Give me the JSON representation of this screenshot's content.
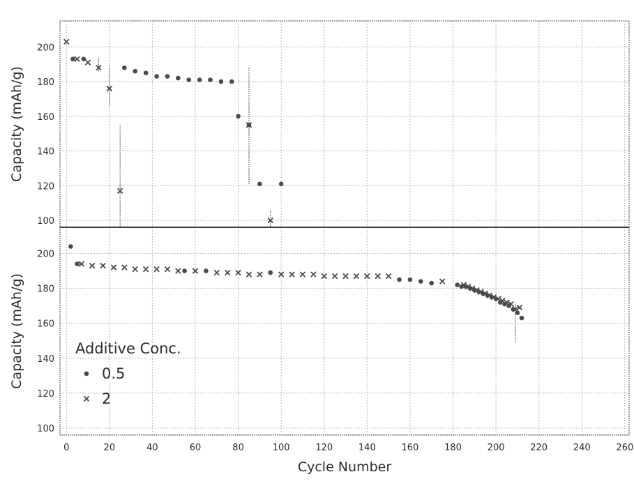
{
  "chart_data": [
    {
      "type": "scatter",
      "panel": "top",
      "ylabel": "Capacity (mAh/g)",
      "xlim": [
        -3,
        262
      ],
      "ylim": [
        96,
        215
      ],
      "xticks": [
        0,
        20,
        40,
        60,
        80,
        100,
        120,
        140,
        160,
        180,
        200,
        220,
        240,
        260
      ],
      "yticks": [
        100,
        120,
        140,
        160,
        180,
        200
      ],
      "ytick_labels": [
        "100",
        "120",
        "140",
        "160",
        "180",
        "200"
      ],
      "grid": true,
      "series": [
        {
          "name": "0.5",
          "marker": "circle",
          "x": [
            3,
            8,
            27,
            32,
            37,
            42,
            47,
            52,
            57,
            62,
            67,
            72,
            77,
            80,
            85,
            90,
            100
          ],
          "y": [
            193,
            193,
            188,
            186,
            185,
            183,
            183,
            182,
            181,
            181,
            181,
            180,
            180,
            160,
            155,
            121,
            121
          ]
        },
        {
          "name": "2",
          "marker": "cross",
          "x": [
            0,
            5,
            10,
            15,
            20,
            25,
            85,
            95
          ],
          "y": [
            203,
            193,
            191,
            188,
            176,
            117,
            155,
            100
          ],
          "yerr_range": [
            null,
            null,
            null,
            [
              186,
              194
            ],
            [
              166,
              190
            ],
            [
              96,
              155
            ],
            [
              121,
              188
            ],
            [
              96,
              106
            ]
          ]
        }
      ]
    },
    {
      "type": "scatter",
      "panel": "bottom",
      "ylabel": "Capacity (mAh/g)",
      "xlabel": "Cycle Number",
      "xlim": [
        -3,
        262
      ],
      "ylim": [
        96,
        215
      ],
      "xticks": [
        0,
        20,
        40,
        60,
        80,
        100,
        120,
        140,
        160,
        180,
        200,
        220,
        240,
        260
      ],
      "xtick_labels": [
        "0",
        "20",
        "40",
        "60",
        "80",
        "100",
        "120",
        "140",
        "160",
        "180",
        "200",
        "220",
        "240",
        "260"
      ],
      "yticks": [
        100,
        120,
        140,
        160,
        180,
        200
      ],
      "ytick_labels": [
        "100",
        "120",
        "140",
        "160",
        "180",
        "200"
      ],
      "grid": true,
      "series": [
        {
          "name": "0.5",
          "marker": "circle",
          "x": [
            2,
            5,
            55,
            65,
            95,
            155,
            160,
            165,
            170,
            182,
            184,
            186,
            188,
            190,
            192,
            194,
            196,
            198,
            200,
            202,
            204,
            206,
            208,
            210,
            212
          ],
          "y": [
            204,
            194,
            190,
            190,
            189,
            185,
            185,
            184,
            183,
            182,
            181,
            181,
            180,
            179,
            178,
            177,
            176,
            175,
            174,
            172,
            171,
            170,
            168,
            166,
            163
          ]
        },
        {
          "name": "2",
          "marker": "cross",
          "x": [
            7,
            12,
            17,
            22,
            27,
            32,
            37,
            42,
            47,
            52,
            60,
            70,
            75,
            80,
            85,
            90,
            100,
            105,
            110,
            115,
            120,
            125,
            130,
            135,
            140,
            145,
            150,
            175,
            185,
            187,
            189,
            191,
            193,
            195,
            197,
            199,
            201,
            203,
            205,
            207,
            209,
            211
          ],
          "y": [
            194,
            193,
            193,
            192,
            192,
            191,
            191,
            191,
            191,
            190,
            190,
            189,
            189,
            189,
            188,
            188,
            188,
            188,
            188,
            188,
            187,
            187,
            187,
            187,
            187,
            187,
            187,
            184,
            182,
            181,
            180,
            179,
            178,
            177,
            176,
            175,
            174,
            173,
            172,
            171,
            168,
            169
          ],
          "yerr_range": [
            null,
            null,
            null,
            null,
            null,
            null,
            null,
            null,
            null,
            null,
            null,
            null,
            null,
            null,
            null,
            null,
            null,
            null,
            null,
            null,
            null,
            null,
            null,
            null,
            null,
            null,
            null,
            null,
            null,
            null,
            null,
            null,
            null,
            null,
            null,
            null,
            null,
            null,
            null,
            null,
            [
              149,
              172
            ],
            null
          ]
        }
      ]
    }
  ],
  "legend": {
    "title": "Additive Conc.",
    "placement": "bottom-left of lower panel",
    "entries": [
      {
        "label": "0.5",
        "marker": "circle"
      },
      {
        "label": "2",
        "marker": "cross"
      }
    ]
  },
  "colors": {
    "marker": "#4a4a4a",
    "grid": "#b5b5b5",
    "frame": "#6a6a6a",
    "divider": "#3a3a3a",
    "text": "#2a2a2a"
  }
}
